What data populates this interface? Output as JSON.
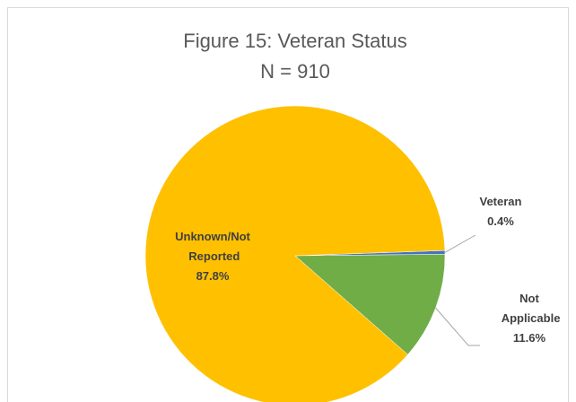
{
  "chart_data": {
    "type": "pie",
    "title": "Figure 15: Veteran Status",
    "subtitle": "N = 910",
    "categories": [
      "Veteran",
      "Not Applicable",
      "Unknown/Not Reported"
    ],
    "values": [
      0.4,
      11.6,
      87.8
    ],
    "value_labels": [
      "0.4%",
      "11.6%",
      "87.8%"
    ],
    "colors": [
      "#4472c4",
      "#70ad47",
      "#ffc000"
    ]
  }
}
